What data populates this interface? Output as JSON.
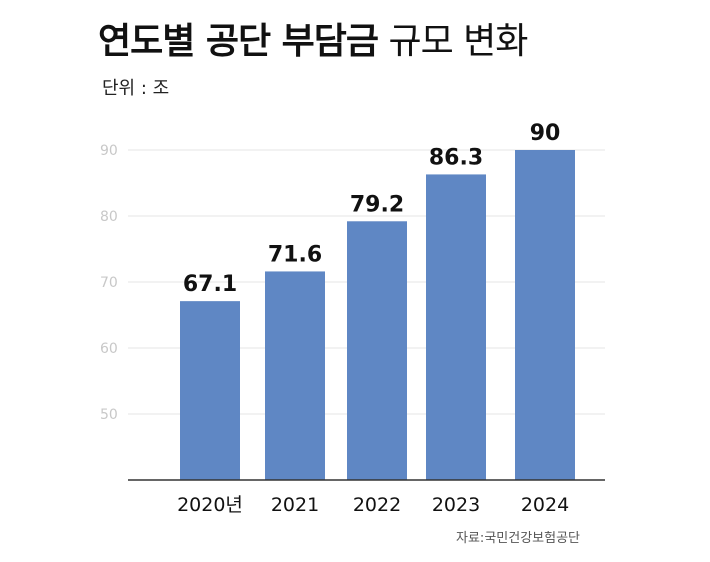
{
  "header": {
    "title_bold": "연도별 공단 부담금",
    "title_normal": "규모 변화",
    "unit": "단위 : 조"
  },
  "footer": {
    "source": "자료:국민건강보험공단"
  },
  "colors": {
    "bar": "#5f87c4",
    "grid": "#e6e6e6",
    "axis": "#333333"
  },
  "chart_data": {
    "type": "bar",
    "title": "연도별 공단 부담금 규모 변화",
    "unit_label": "단위 : 조",
    "categories": [
      "2020년",
      "2021",
      "2022",
      "2023",
      "2024"
    ],
    "values": [
      67.1,
      71.6,
      79.2,
      86.3,
      90
    ],
    "value_labels": [
      "67.1",
      "71.6",
      "79.2",
      "86.3",
      "90"
    ],
    "yticks": [
      50,
      60,
      70,
      80,
      90
    ],
    "ytick_labels": [
      "50",
      "60",
      "70",
      "80",
      "90"
    ],
    "ylim": [
      40,
      90
    ],
    "grid": true,
    "legend": "none"
  }
}
